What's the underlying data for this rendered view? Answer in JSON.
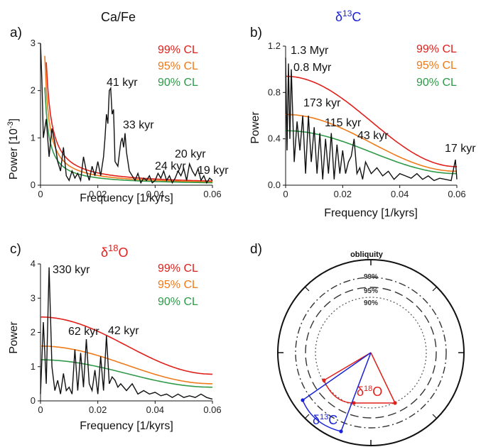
{
  "colors": {
    "cl99": "#e0201b",
    "cl95": "#ef7a1a",
    "cl90": "#2e9a48",
    "spectrum": "#111111",
    "d13c": "#1a22d6",
    "d18o": "#e0201b"
  },
  "confidence_levels": [
    "99% CL",
    "95% CL",
    "90% CL"
  ],
  "panels": {
    "a": {
      "letter": "a)",
      "title": "Ca/Fe",
      "ylabel": "Power [10",
      "ylabel_sup": "-3",
      "ylabel_end": "]",
      "xlabel": "Frequency  [1/kyrs]",
      "peaks": [
        "41 kyr",
        "33 kyr",
        "24 kyr",
        "20 kyr",
        "19 kyr"
      ]
    },
    "b": {
      "letter": "b)",
      "title_main": "δ",
      "title_sup": "13",
      "title_end": "C",
      "ylabel": "Power",
      "xlabel": "Frequency  [1/kyrs]",
      "peaks": [
        "1.3 Myr",
        "0.8 Myr",
        "173 kyr",
        "115 kyr",
        "43 kyr",
        "17 kyr"
      ]
    },
    "c": {
      "letter": "c)",
      "title_main": "δ",
      "title_sup": "18",
      "title_end": "O",
      "ylabel": "Power",
      "xlabel": "Frequency  [1/kyrs]",
      "peaks": [
        "330 kyr",
        "62 kyr",
        "42 kyr"
      ]
    },
    "d": {
      "letter": "d)",
      "title": "obliquity",
      "circle_labels": [
        "99%",
        "95%",
        "90%"
      ],
      "phasor_d18o": {
        "label_main": "δ",
        "label_sup": "18",
        "label_end": "O"
      },
      "phasor_d13c": {
        "label_main": "δ",
        "label_sup": "13",
        "label_end": "C"
      }
    }
  },
  "chart_data": [
    {
      "type": "line",
      "title": "Ca/Fe",
      "xlabel": "Frequency  [1/kyrs]",
      "ylabel": "Power [10-3]",
      "xlim": [
        0,
        0.06
      ],
      "ylim": [
        0,
        3
      ],
      "xticks": [
        "0",
        "0.02",
        "0.04",
        "0.06"
      ],
      "yticks": [
        "0",
        "1",
        "2",
        "3"
      ],
      "spectrum": {
        "x": [
          0,
          0.0005,
          0.001,
          0.002,
          0.003,
          0.004,
          0.005,
          0.006,
          0.007,
          0.008,
          0.009,
          0.01,
          0.011,
          0.012,
          0.013,
          0.014,
          0.015,
          0.016,
          0.017,
          0.018,
          0.019,
          0.02,
          0.021,
          0.022,
          0.0225,
          0.023,
          0.0235,
          0.024,
          0.0245,
          0.025,
          0.0255,
          0.026,
          0.027,
          0.028,
          0.0285,
          0.029,
          0.0295,
          0.03,
          0.031,
          0.032,
          0.033,
          0.034,
          0.035,
          0.036,
          0.037,
          0.038,
          0.039,
          0.04,
          0.041,
          0.042,
          0.043,
          0.044,
          0.045,
          0.046,
          0.047,
          0.048,
          0.049,
          0.05,
          0.051,
          0.052,
          0.053,
          0.054,
          0.055,
          0.056,
          0.057,
          0.058,
          0.059,
          0.06
        ],
        "y": [
          3.0,
          2.2,
          1.0,
          1.4,
          0.6,
          1.2,
          0.9,
          0.5,
          0.3,
          0.8,
          0.2,
          0.1,
          0.3,
          0.15,
          0.25,
          0.1,
          0.6,
          0.3,
          0.1,
          0.4,
          0.2,
          0.5,
          0.2,
          0.6,
          1.0,
          1.5,
          1.3,
          2.0,
          2.05,
          1.5,
          1.6,
          0.5,
          0.4,
          0.9,
          1.0,
          0.8,
          1.1,
          0.7,
          0.3,
          0.2,
          0.1,
          0.25,
          0.05,
          0.15,
          0.1,
          0.2,
          0.05,
          0.1,
          0.25,
          0.15,
          0.3,
          0.1,
          0.2,
          0.05,
          0.15,
          0.3,
          0.2,
          0.35,
          0.1,
          0.45,
          0.3,
          0.2,
          0.35,
          0.1,
          0.2,
          0.05,
          0.15,
          0.1
        ]
      },
      "series": [
        {
          "name": "99% CL",
          "A": 0.0052,
          "p": 1.0
        },
        {
          "name": "95% CL",
          "A": 0.0041,
          "p": 1.0
        },
        {
          "name": "90% CL",
          "A": 0.0031,
          "p": 1.0
        }
      ]
    },
    {
      "type": "line",
      "title": "δ13C",
      "xlabel": "Frequency  [1/kyrs]",
      "ylabel": "Power",
      "xlim": [
        0,
        0.06
      ],
      "ylim": [
        0,
        1.2
      ],
      "xticks": [
        "0",
        "0.02",
        "0.04",
        "0.06"
      ],
      "yticks": [
        "0.0",
        "0.4",
        "0.8",
        "1.2"
      ],
      "spectrum": {
        "x": [
          0,
          0.0005,
          0.001,
          0.0015,
          0.002,
          0.003,
          0.004,
          0.005,
          0.006,
          0.007,
          0.008,
          0.009,
          0.01,
          0.011,
          0.012,
          0.013,
          0.014,
          0.015,
          0.016,
          0.017,
          0.018,
          0.019,
          0.02,
          0.021,
          0.022,
          0.023,
          0.024,
          0.025,
          0.026,
          0.027,
          0.028,
          0.03,
          0.032,
          0.034,
          0.036,
          0.038,
          0.04,
          0.042,
          0.044,
          0.046,
          0.048,
          0.05,
          0.052,
          0.054,
          0.056,
          0.058,
          0.0595,
          0.06
        ],
        "y": [
          1.1,
          0.3,
          1.05,
          0.4,
          1.0,
          0.2,
          0.55,
          0.3,
          0.6,
          0.1,
          0.6,
          0.2,
          0.5,
          0.1,
          0.45,
          0.05,
          0.4,
          0.1,
          0.45,
          0.05,
          0.35,
          0.1,
          0.3,
          0.1,
          0.2,
          0.25,
          0.4,
          0.1,
          0.15,
          0.05,
          0.2,
          0.1,
          0.15,
          0.08,
          0.12,
          0.05,
          0.1,
          0.08,
          0.06,
          0.1,
          0.05,
          0.08,
          0.04,
          0.06,
          0.05,
          0.04,
          0.22,
          0.05
        ]
      },
      "series": [
        {
          "name": "99% CL",
          "base": 0.94,
          "end": 0.16
        },
        {
          "name": "95% CL",
          "base": 0.61,
          "end": 0.12
        },
        {
          "name": "90% CL",
          "base": 0.47,
          "end": 0.1
        }
      ]
    },
    {
      "type": "line",
      "title": "δ18O",
      "xlabel": "Frequency  [1/kyrs]",
      "ylabel": "Power",
      "xlim": [
        0,
        0.06
      ],
      "ylim": [
        0,
        4
      ],
      "xticks": [
        "0",
        "0.02",
        "0.04",
        "0.06"
      ],
      "yticks": [
        "0",
        "1",
        "2",
        "3",
        "4"
      ],
      "spectrum": {
        "x": [
          0,
          0.001,
          0.002,
          0.003,
          0.004,
          0.005,
          0.006,
          0.007,
          0.008,
          0.009,
          0.01,
          0.011,
          0.012,
          0.013,
          0.014,
          0.015,
          0.016,
          0.017,
          0.018,
          0.019,
          0.02,
          0.021,
          0.022,
          0.023,
          0.024,
          0.025,
          0.026,
          0.027,
          0.028,
          0.03,
          0.032,
          0.034,
          0.036,
          0.038,
          0.04,
          0.042,
          0.044,
          0.046,
          0.048,
          0.05,
          0.052,
          0.054,
          0.056,
          0.058,
          0.06
        ],
        "y": [
          0.2,
          2.3,
          0.5,
          3.9,
          1.0,
          0.3,
          0.6,
          0.2,
          0.8,
          0.3,
          0.4,
          0.2,
          1.5,
          0.3,
          1.4,
          0.4,
          1.8,
          0.5,
          0.3,
          0.9,
          0.2,
          1.3,
          0.3,
          1.9,
          0.5,
          0.7,
          0.6,
          0.4,
          0.5,
          0.3,
          0.5,
          0.2,
          0.3,
          0.2,
          0.25,
          0.15,
          0.2,
          0.1,
          0.2,
          0.1,
          0.15,
          0.1,
          0.2,
          0.1,
          0.05
        ]
      },
      "series": [
        {
          "name": "99% CL",
          "base": 2.45,
          "end": 0.78
        },
        {
          "name": "95% CL",
          "base": 1.6,
          "end": 0.5
        },
        {
          "name": "90% CL",
          "base": 1.2,
          "end": 0.4
        }
      ]
    }
  ]
}
